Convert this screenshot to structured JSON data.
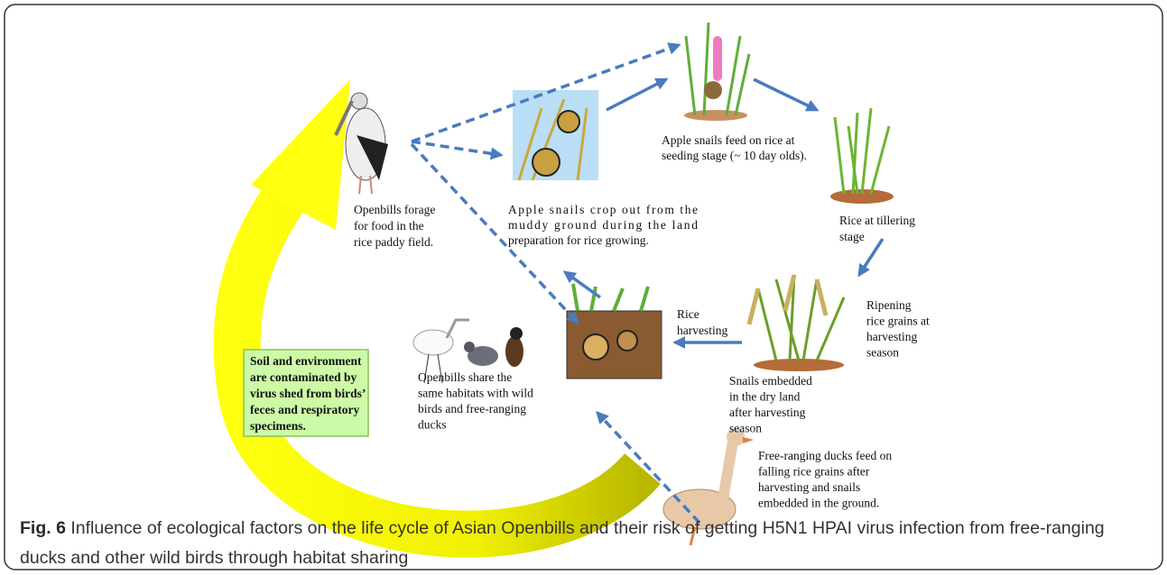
{
  "nodes": [
    {
      "lines": [
        "Openbills forage",
        "for food in the",
        "rice paddy field."
      ]
    },
    {
      "lines": [
        "Apple snails crop out from the",
        "muddy ground during the land",
        "preparation for rice growing."
      ]
    },
    {
      "lines": [
        "Apple snails feed on rice at",
        "seeding stage (~ 10 day olds)."
      ]
    },
    {
      "lines": [
        "Rice at tillering",
        "stage"
      ]
    },
    {
      "lines": [
        "Ripening",
        "rice grains at",
        "harvesting",
        "season"
      ]
    },
    {
      "lines": [
        "Rice",
        "harvesting"
      ]
    },
    {
      "lines": [
        "Snails embedded",
        "in the dry land",
        "after harvesting",
        "season"
      ]
    },
    {
      "lines": [
        "Free-ranging ducks feed on",
        "falling rice grains after",
        "harvesting and snails",
        "embedded in the ground."
      ]
    },
    {
      "lines": [
        "Openbills share the",
        "same habitats with wild",
        "birds and free-ranging",
        "ducks"
      ]
    },
    {
      "lines": [
        "Soil and environment",
        "are contaminated by",
        "virus shed from birds’",
        "feces and respiratory",
        "specimens."
      ]
    }
  ],
  "caption": {
    "number": "Fig. 6",
    "text": "Influence of ecological factors on the life cycle of Asian Openbills and their risk of getting H5N1 HPAI virus infection from free-ranging ducks and other wild birds through habitat sharing"
  }
}
